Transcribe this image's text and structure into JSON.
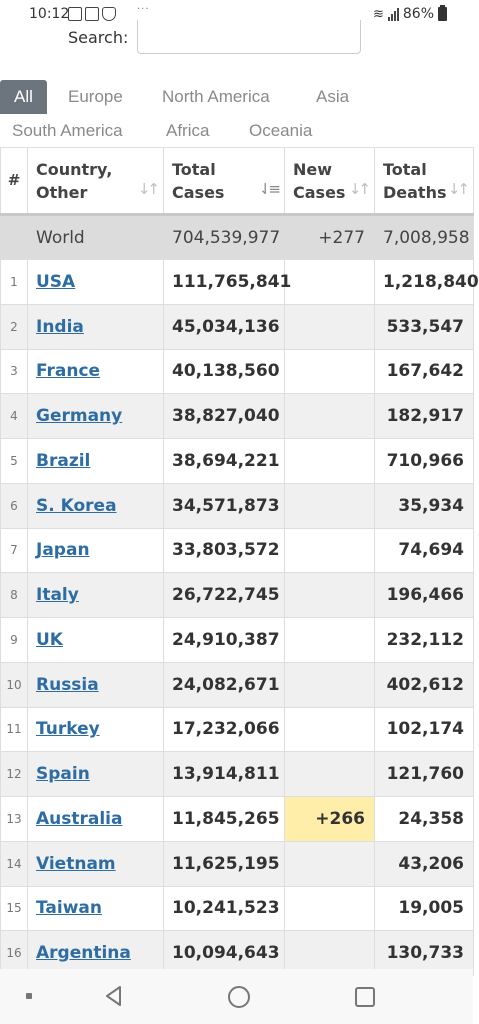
{
  "status_bar": {
    "time": "10:12",
    "battery": "86%",
    "left_icons": [
      "chat-icon",
      "image-icon",
      "shield-icon"
    ],
    "more_dots": "···"
  },
  "search": {
    "label": "Search:",
    "value": ""
  },
  "tabs": [
    {
      "label": "All",
      "active": true
    },
    {
      "label": "Europe"
    },
    {
      "label": "North America"
    },
    {
      "label": "Asia"
    },
    {
      "label": "South America"
    },
    {
      "label": "Africa"
    },
    {
      "label": "Oceania"
    }
  ],
  "table": {
    "headers": {
      "num": "#",
      "country_l1": "Country,",
      "country_l2": "Other",
      "total_l1": "Total",
      "total_l2": "Cases",
      "new_l1": "New",
      "new_l2": "Cases",
      "deaths_l1": "Total",
      "deaths_l2": "Deaths"
    },
    "sort_icon": "↓↑",
    "world": {
      "country": "World",
      "total_cases": "704,539,977",
      "new_cases": "+277",
      "total_deaths": "7,008,958"
    },
    "rows": [
      {
        "num": "1",
        "country": "USA",
        "total_cases": "111,765,841",
        "new_cases": "",
        "total_deaths": "1,218,840"
      },
      {
        "num": "2",
        "country": "India",
        "total_cases": "45,034,136",
        "new_cases": "",
        "total_deaths": "533,547"
      },
      {
        "num": "3",
        "country": "France",
        "total_cases": "40,138,560",
        "new_cases": "",
        "total_deaths": "167,642"
      },
      {
        "num": "4",
        "country": "Germany",
        "total_cases": "38,827,040",
        "new_cases": "",
        "total_deaths": "182,917"
      },
      {
        "num": "5",
        "country": "Brazil",
        "total_cases": "38,694,221",
        "new_cases": "",
        "total_deaths": "710,966"
      },
      {
        "num": "6",
        "country": "S. Korea",
        "total_cases": "34,571,873",
        "new_cases": "",
        "total_deaths": "35,934"
      },
      {
        "num": "7",
        "country": "Japan",
        "total_cases": "33,803,572",
        "new_cases": "",
        "total_deaths": "74,694"
      },
      {
        "num": "8",
        "country": "Italy",
        "total_cases": "26,722,745",
        "new_cases": "",
        "total_deaths": "196,466"
      },
      {
        "num": "9",
        "country": "UK",
        "total_cases": "24,910,387",
        "new_cases": "",
        "total_deaths": "232,112"
      },
      {
        "num": "10",
        "country": "Russia",
        "total_cases": "24,082,671",
        "new_cases": "",
        "total_deaths": "402,612"
      },
      {
        "num": "11",
        "country": "Turkey",
        "total_cases": "17,232,066",
        "new_cases": "",
        "total_deaths": "102,174"
      },
      {
        "num": "12",
        "country": "Spain",
        "total_cases": "13,914,811",
        "new_cases": "",
        "total_deaths": "121,760"
      },
      {
        "num": "13",
        "country": "Australia",
        "total_cases": "11,845,265",
        "new_cases": "+266",
        "total_deaths": "24,358"
      },
      {
        "num": "14",
        "country": "Vietnam",
        "total_cases": "11,625,195",
        "new_cases": "",
        "total_deaths": "43,206"
      },
      {
        "num": "15",
        "country": "Taiwan",
        "total_cases": "10,241,523",
        "new_cases": "",
        "total_deaths": "19,005"
      },
      {
        "num": "16",
        "country": "Argentina",
        "total_cases": "10,094,643",
        "new_cases": "",
        "total_deaths": "130,733"
      }
    ]
  },
  "colors": {
    "link": "#2e6da4",
    "tab_active_bg": "#6c757d",
    "world_row_bg": "#dcdcdc",
    "alt_row_bg": "#f0f0f0",
    "new_cases_highlight": "#ffeeaa"
  },
  "nav_icons": [
    "recent-dot-icon",
    "back-icon",
    "home-icon",
    "recent-apps-icon"
  ]
}
